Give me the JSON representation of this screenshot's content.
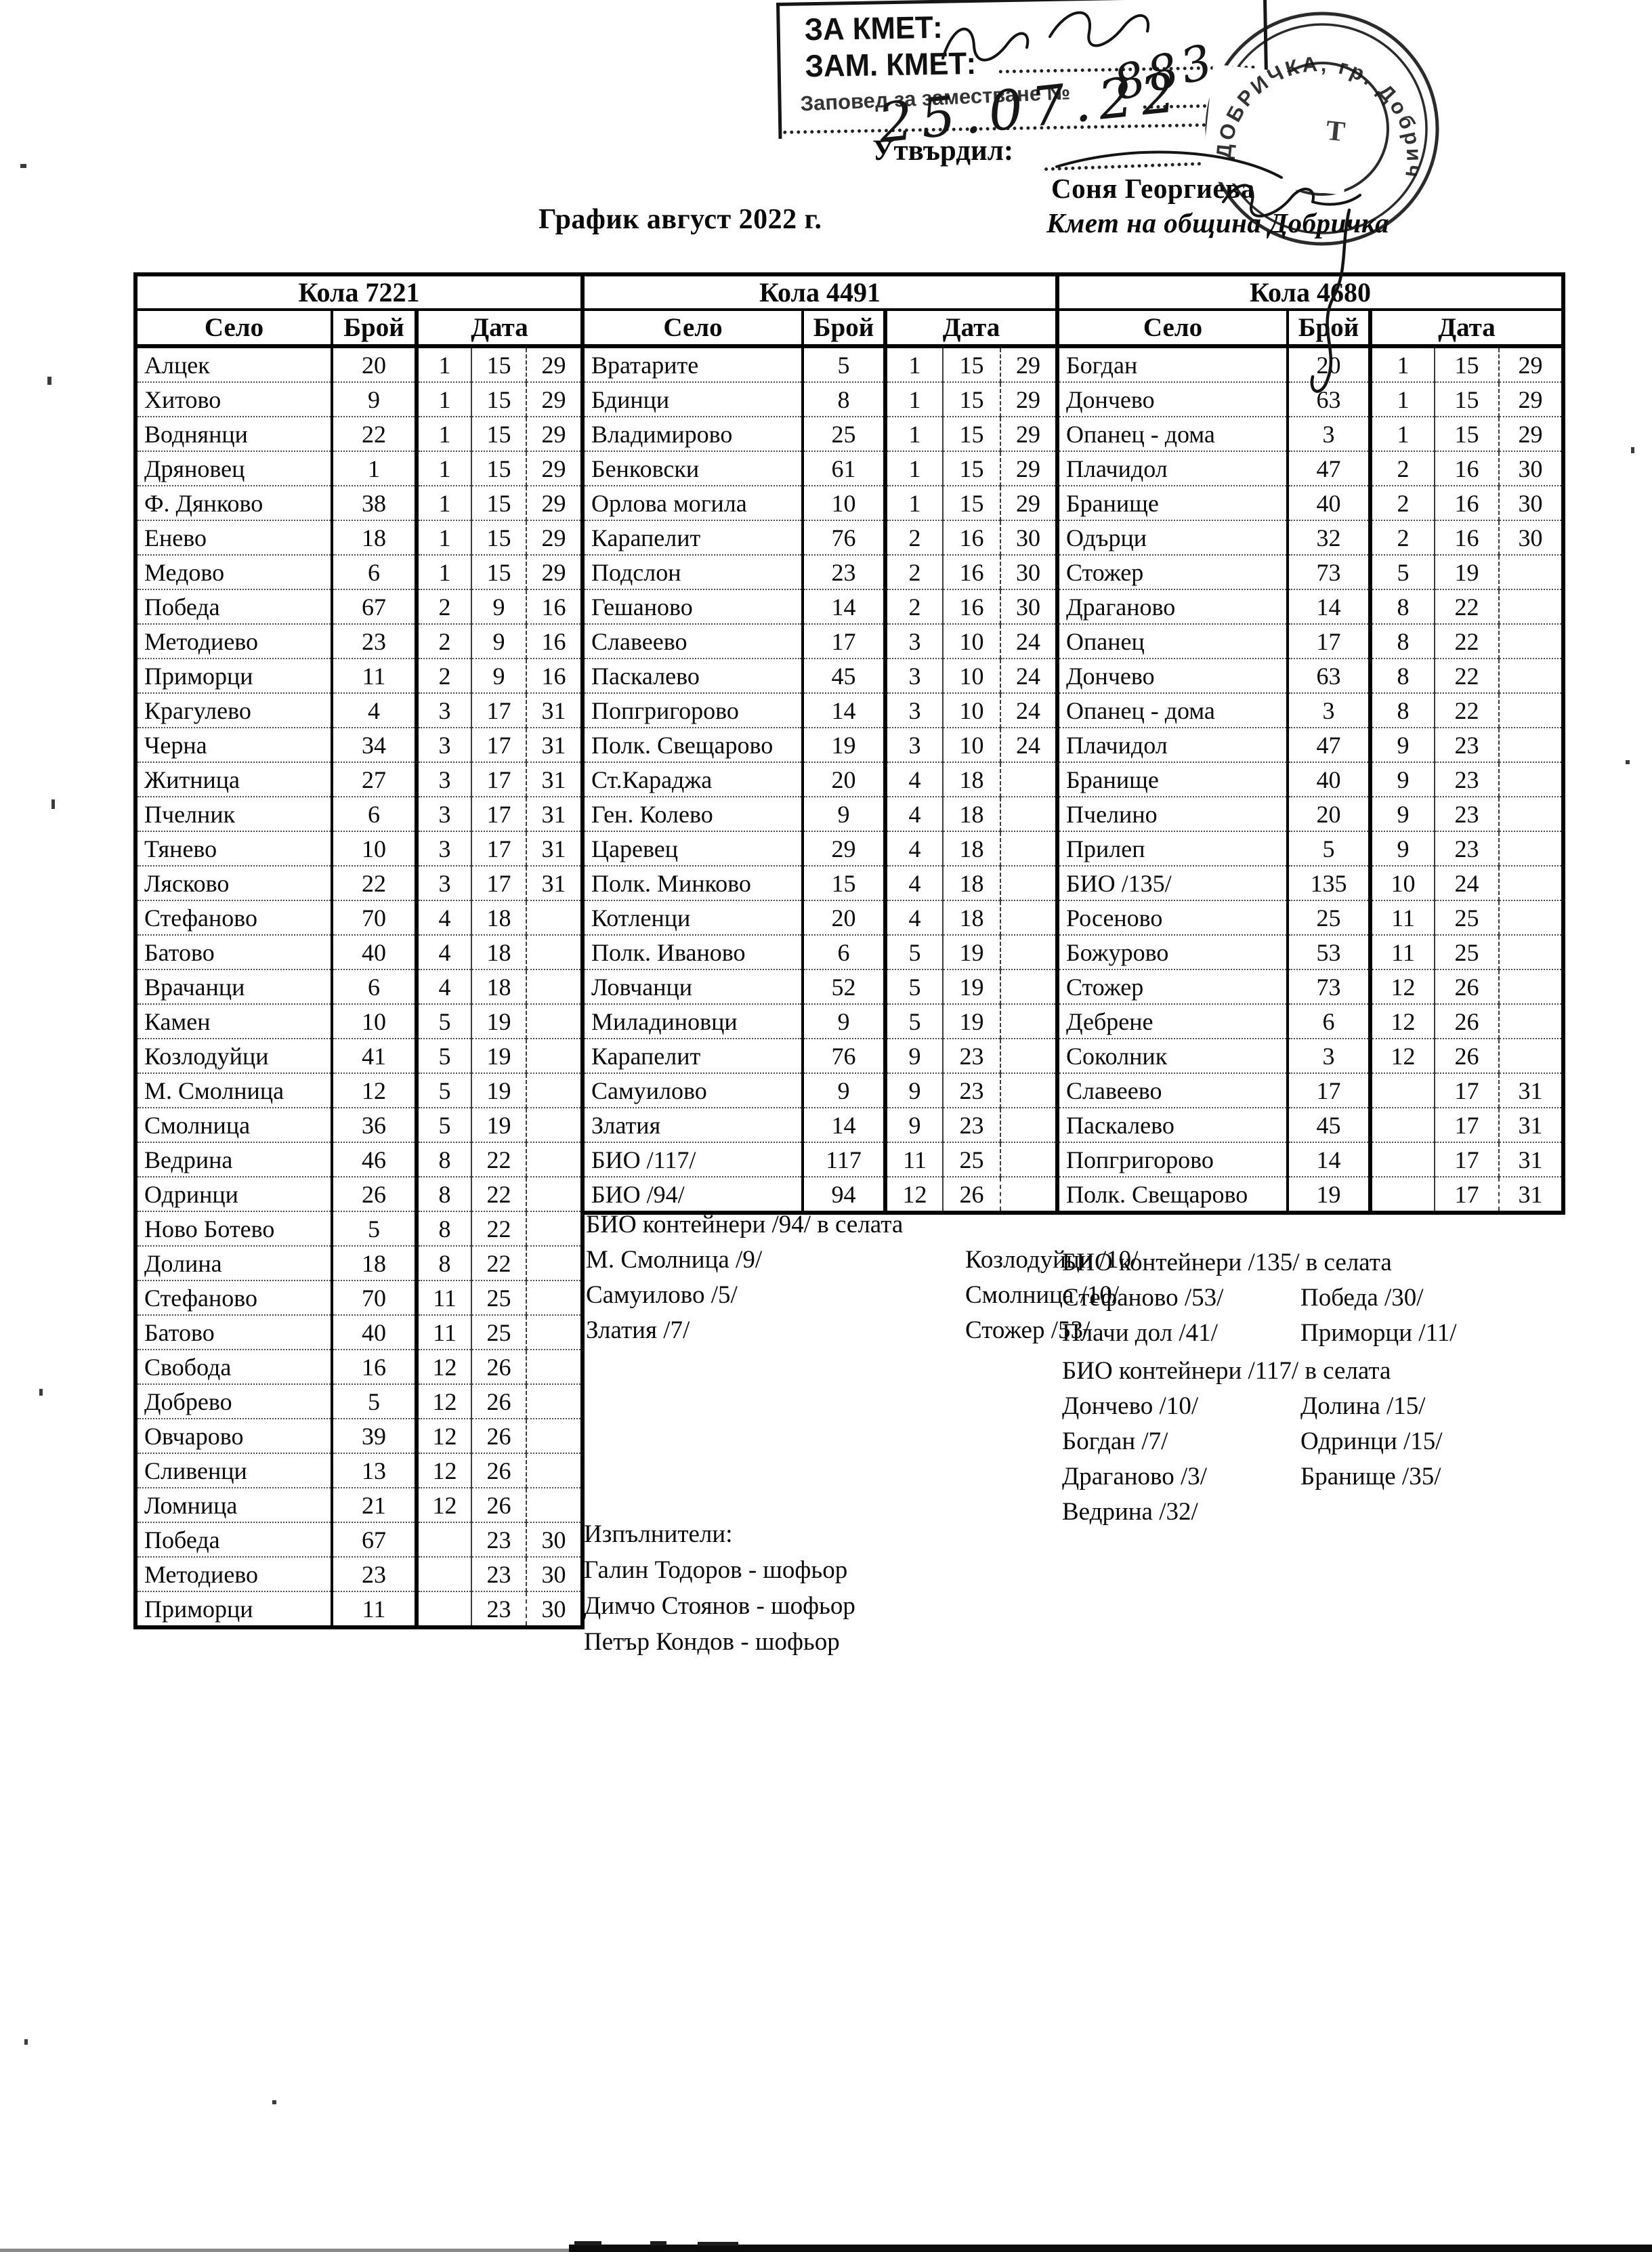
{
  "page": {
    "title": "График август 2022 г."
  },
  "stamp": {
    "line1": "ЗА КМЕТ:",
    "line2": "ЗАМ. КМЕТ:",
    "line3": "Заповед за заместване №",
    "hand_number": "883",
    "hand_date": "25.07.22"
  },
  "approval": {
    "label": "Утвърдил:",
    "name": "Соня Георгиева",
    "role": "Кмет на община Добричка"
  },
  "seal": {
    "ring_text": "ДОБРИЧКА, гр. Добрич",
    "center_mark": "Т"
  },
  "table_headers": {
    "village": "Село",
    "count": "Брой",
    "date": "Дата"
  },
  "tables": [
    {
      "title": "Кола 7221",
      "rows": [
        [
          "Алцек",
          "20",
          "1",
          "15",
          "29"
        ],
        [
          "Хитово",
          "9",
          "1",
          "15",
          "29"
        ],
        [
          "Воднянци",
          "22",
          "1",
          "15",
          "29"
        ],
        [
          "Дряновец",
          "1",
          "1",
          "15",
          "29"
        ],
        [
          "Ф. Дянково",
          "38",
          "1",
          "15",
          "29"
        ],
        [
          "Енево",
          "18",
          "1",
          "15",
          "29"
        ],
        [
          "Медово",
          "6",
          "1",
          "15",
          "29"
        ],
        [
          "Победа",
          "67",
          "2",
          "9",
          "16"
        ],
        [
          "Методиево",
          "23",
          "2",
          "9",
          "16"
        ],
        [
          "Приморци",
          "11",
          "2",
          "9",
          "16"
        ],
        [
          "Крагулево",
          "4",
          "3",
          "17",
          "31"
        ],
        [
          "Черна",
          "34",
          "3",
          "17",
          "31"
        ],
        [
          "Житница",
          "27",
          "3",
          "17",
          "31"
        ],
        [
          "Пчелник",
          "6",
          "3",
          "17",
          "31"
        ],
        [
          "Тянево",
          "10",
          "3",
          "17",
          "31"
        ],
        [
          "Лясково",
          "22",
          "3",
          "17",
          "31"
        ],
        [
          "Стефаново",
          "70",
          "4",
          "18",
          ""
        ],
        [
          "Батово",
          "40",
          "4",
          "18",
          ""
        ],
        [
          "Врачанци",
          "6",
          "4",
          "18",
          ""
        ],
        [
          "Камен",
          "10",
          "5",
          "19",
          ""
        ],
        [
          "Козлодуйци",
          "41",
          "5",
          "19",
          ""
        ],
        [
          "М. Смолница",
          "12",
          "5",
          "19",
          ""
        ],
        [
          "Смолница",
          "36",
          "5",
          "19",
          ""
        ],
        [
          "Ведрина",
          "46",
          "8",
          "22",
          ""
        ],
        [
          "Одринци",
          "26",
          "8",
          "22",
          ""
        ],
        [
          "Ново Ботево",
          "5",
          "8",
          "22",
          ""
        ],
        [
          "Долина",
          "18",
          "8",
          "22",
          ""
        ],
        [
          "Стефаново",
          "70",
          "11",
          "25",
          ""
        ],
        [
          "Батово",
          "40",
          "11",
          "25",
          ""
        ],
        [
          "Свобода",
          "16",
          "12",
          "26",
          ""
        ],
        [
          "Добрево",
          "5",
          "12",
          "26",
          ""
        ],
        [
          "Овчарово",
          "39",
          "12",
          "26",
          ""
        ],
        [
          "Сливенци",
          "13",
          "12",
          "26",
          ""
        ],
        [
          "Ломница",
          "21",
          "12",
          "26",
          ""
        ],
        [
          "Победа",
          "67",
          "",
          "23",
          "30"
        ],
        [
          "Методиево",
          "23",
          "",
          "23",
          "30"
        ],
        [
          "Приморци",
          "11",
          "",
          "23",
          "30"
        ]
      ]
    },
    {
      "title": "Кола 4491",
      "rows": [
        [
          "Вратарите",
          "5",
          "1",
          "15",
          "29"
        ],
        [
          "Бдинци",
          "8",
          "1",
          "15",
          "29"
        ],
        [
          "Владимирово",
          "25",
          "1",
          "15",
          "29"
        ],
        [
          "Бенковски",
          "61",
          "1",
          "15",
          "29"
        ],
        [
          "Орлова могила",
          "10",
          "1",
          "15",
          "29"
        ],
        [
          "Карапелит",
          "76",
          "2",
          "16",
          "30"
        ],
        [
          "Подслон",
          "23",
          "2",
          "16",
          "30"
        ],
        [
          "Гешаново",
          "14",
          "2",
          "16",
          "30"
        ],
        [
          "Славеево",
          "17",
          "3",
          "10",
          "24"
        ],
        [
          "Паскалево",
          "45",
          "3",
          "10",
          "24"
        ],
        [
          "Попгригорово",
          "14",
          "3",
          "10",
          "24"
        ],
        [
          "Полк. Свещарово",
          "19",
          "3",
          "10",
          "24"
        ],
        [
          "Ст.Караджа",
          "20",
          "4",
          "18",
          ""
        ],
        [
          "Ген. Колево",
          "9",
          "4",
          "18",
          ""
        ],
        [
          "Царевец",
          "29",
          "4",
          "18",
          ""
        ],
        [
          "Полк. Минково",
          "15",
          "4",
          "18",
          ""
        ],
        [
          "Котленци",
          "20",
          "4",
          "18",
          ""
        ],
        [
          "Полк. Иваново",
          "6",
          "5",
          "19",
          ""
        ],
        [
          "Ловчанци",
          "52",
          "5",
          "19",
          ""
        ],
        [
          "Миладиновци",
          "9",
          "5",
          "19",
          ""
        ],
        [
          "Карапелит",
          "76",
          "9",
          "23",
          ""
        ],
        [
          "Самуилово",
          "9",
          "9",
          "23",
          ""
        ],
        [
          "Златия",
          "14",
          "9",
          "23",
          ""
        ],
        [
          "БИО /117/",
          "117",
          "11",
          "25",
          ""
        ],
        [
          "БИО /94/",
          "94",
          "12",
          "26",
          ""
        ]
      ]
    },
    {
      "title": "Кола 4680",
      "rows": [
        [
          "Богдан",
          "20",
          "1",
          "15",
          "29"
        ],
        [
          "Дончево",
          "63",
          "1",
          "15",
          "29"
        ],
        [
          "Опанец - дома",
          "3",
          "1",
          "15",
          "29"
        ],
        [
          "Плачидол",
          "47",
          "2",
          "16",
          "30"
        ],
        [
          "Бранище",
          "40",
          "2",
          "16",
          "30"
        ],
        [
          "Одърци",
          "32",
          "2",
          "16",
          "30"
        ],
        [
          "Стожер",
          "73",
          "5",
          "19",
          ""
        ],
        [
          "Драганово",
          "14",
          "8",
          "22",
          ""
        ],
        [
          "Опанец",
          "17",
          "8",
          "22",
          ""
        ],
        [
          "Дончево",
          "63",
          "8",
          "22",
          ""
        ],
        [
          "Опанец - дома",
          "3",
          "8",
          "22",
          ""
        ],
        [
          "Плачидол",
          "47",
          "9",
          "23",
          ""
        ],
        [
          "Бранище",
          "40",
          "9",
          "23",
          ""
        ],
        [
          "Пчелино",
          "20",
          "9",
          "23",
          ""
        ],
        [
          "Прилеп",
          "5",
          "9",
          "23",
          ""
        ],
        [
          "БИО /135/",
          "135",
          "10",
          "24",
          ""
        ],
        [
          "Росеново",
          "25",
          "11",
          "25",
          ""
        ],
        [
          "Божурово",
          "53",
          "11",
          "25",
          ""
        ],
        [
          "Стожер",
          "73",
          "12",
          "26",
          ""
        ],
        [
          "Дебрене",
          "6",
          "12",
          "26",
          ""
        ],
        [
          "Соколник",
          "3",
          "12",
          "26",
          ""
        ],
        [
          "Славеево",
          "17",
          "",
          "17",
          "31"
        ],
        [
          "Паскалево",
          "45",
          "",
          "17",
          "31"
        ],
        [
          "Попгригорово",
          "14",
          "",
          "17",
          "31"
        ],
        [
          "Полк. Свещарово",
          "19",
          "",
          "17",
          "31"
        ]
      ]
    }
  ],
  "notes": [
    {
      "title": "БИО контейнери /94/ в селата",
      "items": [
        [
          "М. Смолница /9/",
          "Козлодуйци /10/"
        ],
        [
          "Самуилово /5/",
          "Смолница /10/"
        ],
        [
          "Златия /7/",
          "Стожер /53/"
        ]
      ]
    },
    {
      "title": "БИО контейнери /135/ в селата",
      "items": [
        [
          "Стефаново /53/",
          "Победа /30/"
        ],
        [
          "Плачи дол /41/",
          "Приморци /11/"
        ]
      ]
    },
    {
      "title": "БИО контейнери /117/ в селата",
      "items": [
        [
          "Дончево /10/",
          "Долина /15/"
        ],
        [
          "Богдан /7/",
          "Одринци /15/"
        ],
        [
          "Драганово /3/",
          "Бранище /35/"
        ],
        [
          "Ведрина /32/",
          ""
        ]
      ]
    }
  ],
  "executors": {
    "label": "Изпълнители:",
    "items": [
      "Галин Тодоров - шофьор",
      "Димчо Стоянов - шофьор",
      "Петър Кондов - шофьор"
    ]
  }
}
